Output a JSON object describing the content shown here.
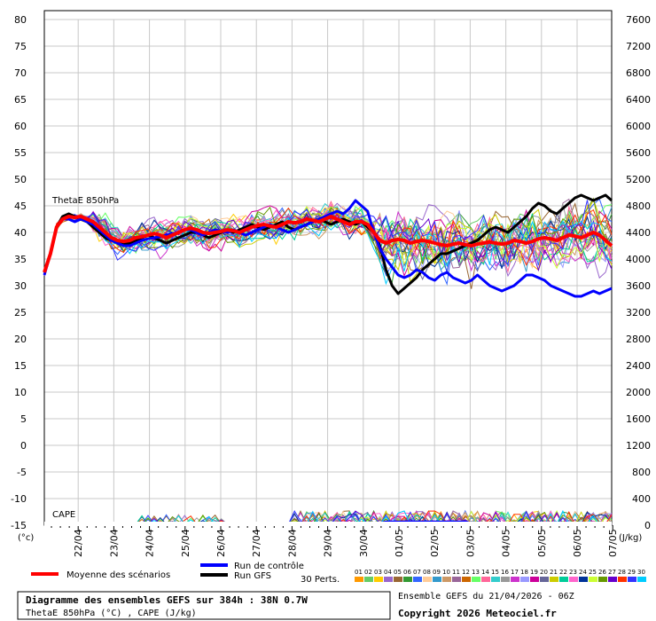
{
  "chart_data": {
    "type": "line",
    "left_axis": {
      "ticks": [
        80,
        75,
        70,
        65,
        60,
        55,
        50,
        45,
        40,
        35,
        30,
        25,
        20,
        15,
        10,
        5,
        0,
        -5,
        -10,
        -15
      ],
      "unit": "(°c)",
      "ylim": [
        -15,
        80
      ]
    },
    "right_axis": {
      "ticks": [
        7600,
        7200,
        6800,
        6400,
        6000,
        5600,
        5200,
        4800,
        4400,
        4000,
        3600,
        3200,
        2800,
        2400,
        2000,
        1600,
        1200,
        800,
        400,
        0
      ],
      "unit": "(J/kg)"
    },
    "x_ticks": [
      "22/04",
      "23/04",
      "24/04",
      "25/04",
      "26/04",
      "27/04",
      "28/04",
      "29/04",
      "30/04",
      "01/05",
      "02/05",
      "03/05",
      "04/05",
      "05/05",
      "06/05",
      "07/05"
    ],
    "labels": {
      "thetae": "ThetaE 850hPa",
      "cape": "CAPE"
    },
    "series": [
      {
        "name": "Moyenne des scénarios",
        "color": "#ff0000",
        "values": [
          32.5,
          36,
          41,
          42.5,
          43,
          42.8,
          43,
          42.5,
          42,
          41,
          40,
          39,
          38.5,
          38.3,
          38.5,
          39,
          39.2,
          39.5,
          39.8,
          39.5,
          39,
          39.5,
          40,
          40.5,
          40.8,
          40.5,
          40,
          39.8,
          40,
          40.2,
          40.5,
          40.3,
          40,
          40.5,
          41,
          41.3,
          41.5,
          41.2,
          41,
          41.5,
          42,
          41.8,
          42,
          42.5,
          42.3,
          42,
          42.5,
          43,
          42.5,
          42,
          41.5,
          42,
          42,
          41.5,
          40,
          38.5,
          38,
          38.5,
          38.7,
          38.5,
          38,
          38.3,
          38.5,
          38.3,
          38,
          37.7,
          37.5,
          37.8,
          38,
          37.7,
          37.5,
          37.8,
          38,
          38.2,
          38,
          37.8,
          38,
          38.5,
          38.3,
          38,
          38.3,
          38.8,
          39,
          38.8,
          38.5,
          39,
          39.5,
          39.3,
          39,
          39.5,
          40,
          39.5,
          38.5,
          37.5
        ]
      },
      {
        "name": "Run de contrôle",
        "color": "#0000ff",
        "values": [
          32,
          36,
          41,
          42.5,
          42.5,
          42,
          42.5,
          42,
          41.5,
          40.5,
          39.5,
          38.5,
          38,
          37.5,
          37.5,
          38,
          38.5,
          38.8,
          39,
          39.2,
          39.5,
          39.8,
          40,
          40.5,
          40.5,
          40,
          39.5,
          40,
          40.5,
          40.2,
          40,
          40.5,
          40,
          39.5,
          40,
          40.5,
          41,
          41.5,
          41,
          40.5,
          40,
          40.5,
          41,
          41.5,
          42,
          42.5,
          43,
          43.5,
          44,
          43.5,
          44.5,
          46,
          45,
          44,
          40,
          37,
          35,
          33.5,
          32,
          31.5,
          32,
          33,
          32.5,
          31.5,
          31,
          32,
          32.5,
          31.5,
          31,
          30.5,
          31,
          32,
          31,
          30,
          29.5,
          29,
          29.5,
          30,
          31,
          32,
          32,
          31.5,
          31,
          30,
          29.5,
          29,
          28.5,
          28,
          28,
          28.5,
          29,
          28.5,
          29,
          29.5
        ]
      },
      {
        "name": "Run GFS",
        "color": "#000000",
        "values": [
          32.5,
          36,
          41,
          43,
          43.5,
          43,
          42.5,
          42,
          41,
          40,
          39,
          38.5,
          38,
          37.8,
          38,
          38.5,
          39,
          39.5,
          39,
          38.5,
          38,
          38.5,
          39,
          39.5,
          40,
          40,
          39.5,
          39,
          39.5,
          40,
          40.5,
          40,
          40.5,
          41,
          41.5,
          41,
          40.5,
          41,
          41.5,
          42,
          41,
          40.5,
          41,
          41.5,
          42,
          42.5,
          42,
          41.5,
          42,
          42.5,
          42,
          41.5,
          42,
          41,
          40,
          37.5,
          33,
          30,
          28.5,
          29.5,
          30.5,
          31.5,
          33,
          34,
          35,
          36,
          36,
          36.5,
          37,
          37.5,
          38,
          38.5,
          39.5,
          40.5,
          41,
          40.5,
          40,
          41,
          42,
          43,
          44.5,
          45.5,
          45,
          44,
          43.5,
          44.5,
          45.5,
          46.5,
          47,
          46.5,
          46,
          46.5,
          47,
          46
        ]
      }
    ],
    "perturbations_label": "30 Perts.",
    "perturbation_ids": [
      "01",
      "02",
      "03",
      "04",
      "05",
      "06",
      "07",
      "08",
      "09",
      "10",
      "11",
      "12",
      "13",
      "14",
      "15",
      "16",
      "17",
      "18",
      "19",
      "20",
      "21",
      "22",
      "23",
      "24",
      "25",
      "26",
      "27",
      "28",
      "29",
      "30"
    ],
    "perturbation_colors": [
      "#ff9900",
      "#66cc66",
      "#ffcc00",
      "#9966cc",
      "#996633",
      "#339933",
      "#3366ff",
      "#ffcc99",
      "#3399cc",
      "#cc9966",
      "#996699",
      "#cc6600",
      "#66ff66",
      "#ff6699",
      "#33cccc",
      "#999999",
      "#cc33cc",
      "#9999ff",
      "#cc0099",
      "#666699",
      "#cccc00",
      "#00cc99",
      "#ff66cc",
      "#003399",
      "#ccff33",
      "#669900",
      "#6600cc",
      "#ff3300",
      "#3333ff",
      "#00ccff"
    ]
  },
  "legend": {
    "mean": "Moyenne des scénarios",
    "control": "Run de contrôle",
    "gfs": "Run GFS",
    "perts": "30 Perts."
  },
  "footer": {
    "title": "Diagramme des ensembles GEFS sur 384h : 38N 0.7W",
    "subtitle": "ThetaE 850hPa (°C) , CAPE (J/kg)",
    "run": "Ensemble GEFS du 21/04/2026 - 06Z",
    "copyright": "Copyright 2026 Meteociel.fr"
  }
}
